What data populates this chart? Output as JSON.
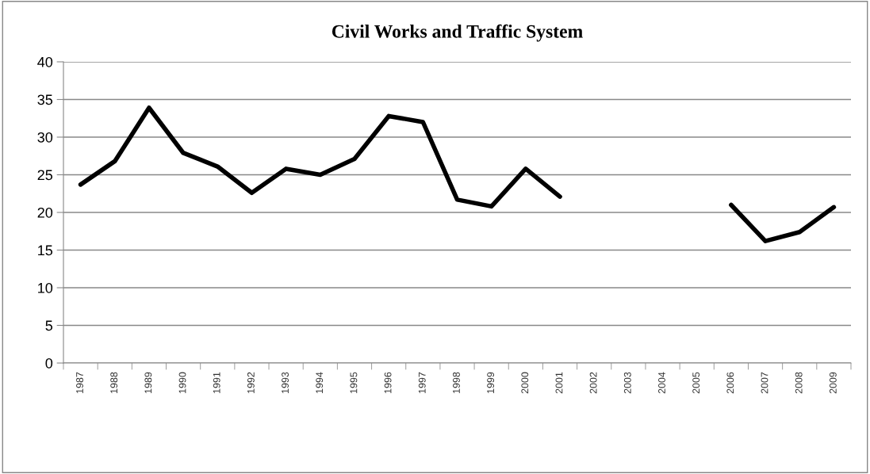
{
  "chart_data": {
    "type": "line",
    "title": "Civil Works and Traffic System",
    "categories": [
      "1987",
      "1988",
      "1989",
      "1990",
      "1991",
      "1992",
      "1993",
      "1994",
      "1995",
      "1996",
      "1997",
      "1998",
      "1999",
      "2000",
      "2001",
      "2002",
      "2003",
      "2004",
      "2005",
      "2006",
      "2007",
      "2008",
      "2009"
    ],
    "series": [
      {
        "color": "#000000",
        "values": [
          23.7,
          26.8,
          33.9,
          27.9,
          26.1,
          22.6,
          25.8,
          25.0,
          27.1,
          32.8,
          32.0,
          21.7,
          20.8,
          25.8,
          22.1,
          null,
          null,
          null,
          null,
          21.0,
          16.2,
          17.4,
          20.7
        ]
      }
    ],
    "ylim": [
      0,
      40
    ],
    "yticks": [
      0,
      5,
      10,
      15,
      20,
      25,
      30,
      35,
      40
    ],
    "grid": "y",
    "marker": "none",
    "line_style": "solid"
  }
}
